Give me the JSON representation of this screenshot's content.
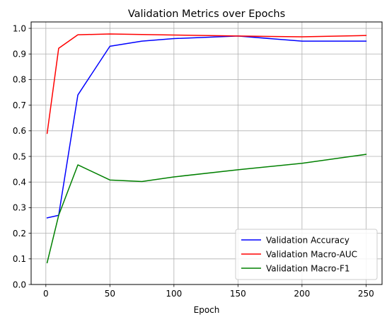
{
  "chart_data": {
    "type": "line",
    "title": "Validation Metrics over Epochs",
    "xlabel": "Epoch",
    "ylabel": "",
    "xlim": [
      -11.5,
      262.5
    ],
    "ylim": [
      0,
      1.025
    ],
    "xticks": [
      0,
      50,
      100,
      150,
      200,
      250
    ],
    "xtick_labels": [
      "0",
      "50",
      "100",
      "150",
      "200",
      "250"
    ],
    "yticks": [
      0.0,
      0.1,
      0.2,
      0.3,
      0.4,
      0.5,
      0.6,
      0.7,
      0.8,
      0.9,
      1.0
    ],
    "ytick_labels": [
      "0.0",
      "0.1",
      "0.2",
      "0.3",
      "0.4",
      "0.5",
      "0.6",
      "0.7",
      "0.8",
      "0.9",
      "1.0"
    ],
    "grid": true,
    "legend_position": "lower-right",
    "x": [
      1,
      10,
      25,
      50,
      75,
      100,
      150,
      200,
      250
    ],
    "series": [
      {
        "name": "Validation Accuracy",
        "color": "#0000ff",
        "values": [
          0.26,
          0.27,
          0.74,
          0.93,
          0.95,
          0.96,
          0.97,
          0.95,
          0.95
        ]
      },
      {
        "name": "Validation Macro-AUC",
        "color": "#ff0000",
        "values": [
          0.59,
          0.922,
          0.975,
          0.978,
          0.976,
          0.974,
          0.97,
          0.967,
          0.972
        ]
      },
      {
        "name": "Validation Macro-F1",
        "color": "#008000",
        "values": [
          0.085,
          0.27,
          0.467,
          0.408,
          0.402,
          0.42,
          0.448,
          0.473,
          0.508
        ]
      }
    ]
  }
}
